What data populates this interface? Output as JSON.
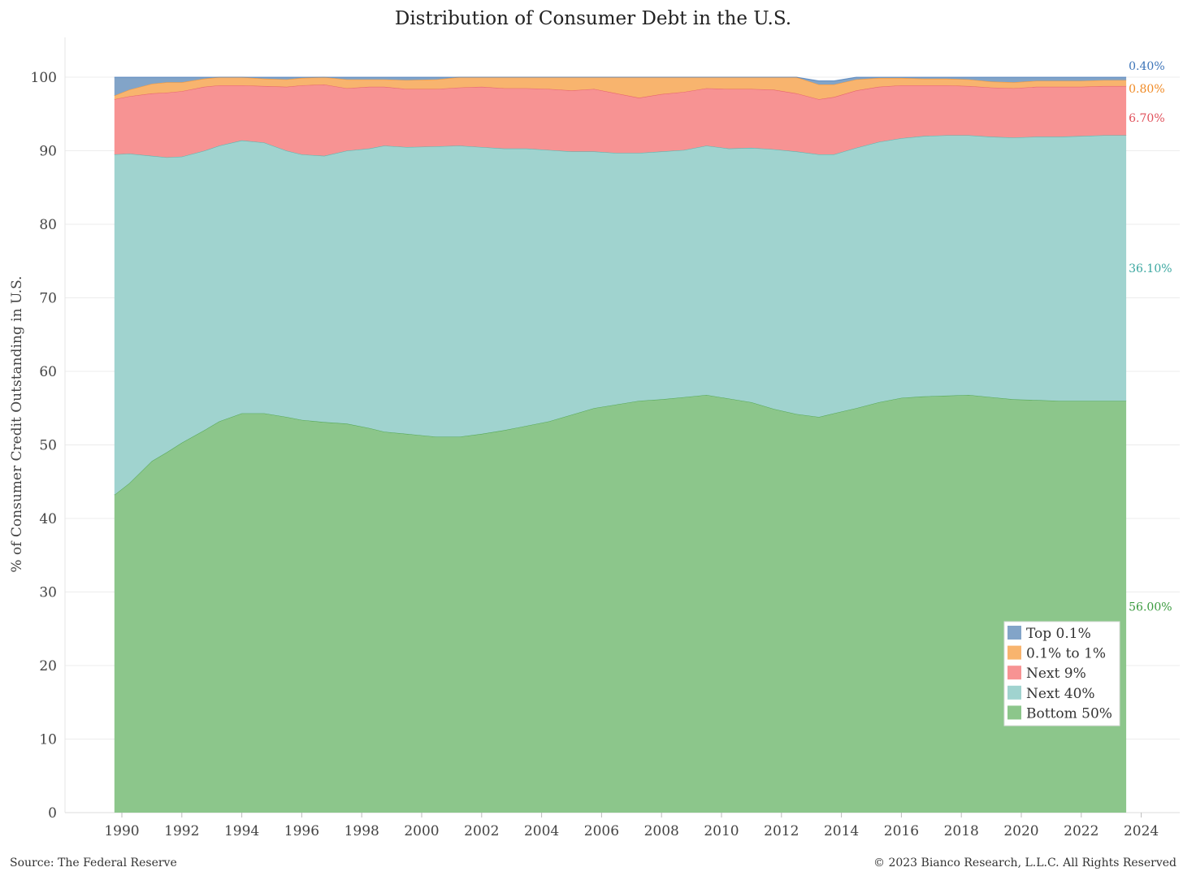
{
  "chart_data": {
    "type": "area",
    "stacked": true,
    "title": "Distribution of Consumer Debt in the U.S.",
    "xlabel": "",
    "ylabel": "% of Consumer Credit Outstanding in U.S.",
    "ylim": [
      0,
      100
    ],
    "xlim": [
      1989.5,
      2024.5
    ],
    "y_ticks": [
      "0",
      "10",
      "20",
      "30",
      "40",
      "50",
      "60",
      "70",
      "80",
      "90",
      "100"
    ],
    "x_ticks": [
      "1990",
      "1992",
      "1994",
      "1996",
      "1998",
      "2000",
      "2002",
      "2004",
      "2006",
      "2008",
      "2010",
      "2012",
      "2014",
      "2016",
      "2018",
      "2020",
      "2022",
      "2024"
    ],
    "grid": "horizontal",
    "legend_position": "bottom-right",
    "x": [
      1989.75,
      1990.25,
      1991,
      1991.5,
      1992,
      1992.75,
      1993.25,
      1994,
      1994.75,
      1995.5,
      1996,
      1996.75,
      1997.5,
      1998.25,
      1998.75,
      1999.5,
      2000.5,
      2001.25,
      2002,
      2002.75,
      2003.5,
      2004.25,
      2005,
      2005.75,
      2006.5,
      2007.25,
      2008,
      2008.75,
      2009.5,
      2010.25,
      2011,
      2011.75,
      2012.5,
      2013.25,
      2013.75,
      2014.5,
      2015.25,
      2016,
      2016.75,
      2017.5,
      2018.25,
      2019,
      2019.75,
      2020.5,
      2021.25,
      2022,
      2022.75,
      2023.5
    ],
    "series": [
      {
        "name": "Bottom 50%",
        "color": "#8cc68b",
        "values": [
          43.2,
          44.8,
          47.8,
          49.0,
          50.3,
          52.0,
          53.2,
          54.3,
          54.3,
          53.8,
          53.4,
          53.1,
          52.9,
          52.3,
          51.8,
          51.5,
          51.1,
          51.1,
          51.5,
          52.0,
          52.6,
          53.2,
          54.1,
          55.0,
          55.5,
          56.0,
          56.2,
          56.5,
          56.8,
          56.3,
          55.8,
          54.9,
          54.2,
          53.8,
          54.3,
          55.0,
          55.8,
          56.4,
          56.6,
          56.7,
          56.8,
          56.5,
          56.2,
          56.1,
          56.0,
          56.0,
          56.0,
          56.0
        ]
      },
      {
        "name": "Next 40%",
        "color": "#a0d3cf",
        "values": [
          46.3,
          44.8,
          41.5,
          40.1,
          38.9,
          38.0,
          37.5,
          37.1,
          36.8,
          36.2,
          36.1,
          36.2,
          37.1,
          38.0,
          38.9,
          39.0,
          39.5,
          39.6,
          39.0,
          38.3,
          37.7,
          36.9,
          35.8,
          34.9,
          34.2,
          33.7,
          33.7,
          33.6,
          33.9,
          34.0,
          34.6,
          35.3,
          35.7,
          35.7,
          35.2,
          35.4,
          35.4,
          35.3,
          35.4,
          35.4,
          35.3,
          35.4,
          35.6,
          35.8,
          35.9,
          36.0,
          36.1,
          36.1
        ]
      },
      {
        "name": "Next 9%",
        "color": "#f79393",
        "values": [
          7.5,
          7.8,
          8.5,
          8.8,
          8.9,
          8.7,
          8.2,
          7.5,
          7.7,
          8.7,
          9.4,
          9.7,
          8.5,
          8.4,
          8.0,
          7.9,
          7.8,
          7.9,
          8.2,
          8.2,
          8.2,
          8.3,
          8.3,
          8.5,
          8.1,
          7.5,
          7.8,
          7.9,
          7.8,
          8.1,
          8.0,
          8.1,
          7.9,
          7.5,
          7.8,
          7.8,
          7.5,
          7.2,
          6.9,
          6.8,
          6.7,
          6.7,
          6.7,
          6.8,
          6.8,
          6.7,
          6.7,
          6.7
        ]
      },
      {
        "name": "0.1% to 1%",
        "color": "#f8b46e",
        "values": [
          0.5,
          0.9,
          1.3,
          1.4,
          1.2,
          1.1,
          1.1,
          1.1,
          1.0,
          1.0,
          1.0,
          1.0,
          1.2,
          1.0,
          1.0,
          1.2,
          1.3,
          1.4,
          1.6,
          2.0,
          2.4,
          2.6,
          2.9,
          2.8,
          2.9,
          3.0,
          2.9,
          2.7,
          2.4,
          2.2,
          2.3,
          2.3,
          2.3,
          2.0,
          1.7,
          1.5,
          1.2,
          1.0,
          0.9,
          0.9,
          0.9,
          0.8,
          0.8,
          0.8,
          0.8,
          0.8,
          0.8,
          0.8
        ]
      },
      {
        "name": "Top 0.1%",
        "color": "#82a4c8",
        "values": [
          2.5,
          1.7,
          0.9,
          0.7,
          0.7,
          0.2,
          0.0,
          0.0,
          0.2,
          0.3,
          0.1,
          0.0,
          0.3,
          0.3,
          0.3,
          0.4,
          0.3,
          0.2,
          0.1,
          0.3,
          0.3,
          0.4,
          0.3,
          0.3,
          0.3,
          0.3,
          0.2,
          0.3,
          0.2,
          0.4,
          0.3,
          0.4,
          0.3,
          0.5,
          0.5,
          0.3,
          0.3,
          0.5,
          0.4,
          0.4,
          0.3,
          0.6,
          0.7,
          0.5,
          0.5,
          0.5,
          0.4,
          0.4
        ]
      }
    ],
    "end_labels": [
      {
        "series": "Top 0.1%",
        "text": "0.40%"
      },
      {
        "series": "0.1% to 1%",
        "text": "0.80%"
      },
      {
        "series": "Next 9%",
        "text": "6.70%"
      },
      {
        "series": "Next 40%",
        "text": "36.10%"
      },
      {
        "series": "Bottom 50%",
        "text": "56.00%"
      }
    ],
    "legend": [
      "Top 0.1%",
      "0.1% to 1%",
      "Next 9%",
      "Next 40%",
      "Bottom 50%"
    ],
    "label_colors": {
      "Top 0.1%": "#3c74b8",
      "0.1% to 1%": "#f08a24",
      "Next 9%": "#e0505a",
      "Next 40%": "#3aa7a0",
      "Bottom 50%": "#3a9a3e"
    }
  },
  "footer": {
    "source": "Source: The Federal Reserve",
    "copyright": "© 2023 Bianco Research, L.L.C. All Rights Reserved"
  }
}
